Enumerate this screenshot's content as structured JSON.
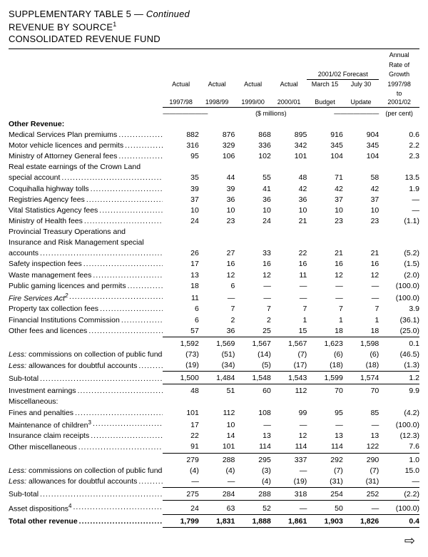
{
  "titles": {
    "t1a": "SUPPLEMENTARY TABLE 5 — ",
    "t1b": "Continued",
    "t2": "REVENUE BY SOURCE",
    "t2sup": "1",
    "t3": "CONSOLIDATED REVENUE FUND"
  },
  "colheads": {
    "c1a": "Actual",
    "c1b": "1997/98",
    "c2a": "Actual",
    "c2b": "1998/99",
    "c3a": "Actual",
    "c3b": "1999/00",
    "c4a": "Actual",
    "c4b": "2000/01",
    "forecast": "2001/02 Forecast",
    "c5a": "March 15",
    "c5b": "Budget",
    "c6a": "July 30",
    "c6b": "Update",
    "c7a": "Annual",
    "c7b": "Rate of",
    "c7c": "Growth",
    "c7d": "1997/98",
    "c7e": "to",
    "c7f": "2001/02"
  },
  "units": {
    "mid": "($ millions)",
    "last": "(per cent)"
  },
  "section": "Other Revenue:",
  "rows": [
    {
      "l": "Medical Services Plan premiums",
      "v": [
        "882",
        "876",
        "868",
        "895",
        "916",
        "904",
        "0.6"
      ]
    },
    {
      "l": "Motor vehicle licences and permits",
      "v": [
        "316",
        "329",
        "336",
        "342",
        "345",
        "345",
        "2.2"
      ]
    },
    {
      "l": "Ministry of Attorney General fees",
      "v": [
        "95",
        "106",
        "102",
        "101",
        "104",
        "104",
        "2.3"
      ]
    },
    {
      "l": "Real estate earnings of the Crown Land",
      "nolead": true,
      "v": [
        "",
        "",
        "",
        "",
        "",
        "",
        ""
      ]
    },
    {
      "l": "special account",
      "ind": 1,
      "v": [
        "35",
        "44",
        "55",
        "48",
        "71",
        "58",
        "13.5"
      ]
    },
    {
      "l": "Coquihalla highway tolls",
      "v": [
        "39",
        "39",
        "41",
        "42",
        "42",
        "42",
        "1.9"
      ]
    },
    {
      "l": "Registries Agency fees",
      "v": [
        "37",
        "36",
        "36",
        "36",
        "37",
        "37",
        "—"
      ]
    },
    {
      "l": "Vital Statistics Agency fees",
      "v": [
        "10",
        "10",
        "10",
        "10",
        "10",
        "10",
        "—"
      ]
    },
    {
      "l": "Ministry of Health fees",
      "v": [
        "24",
        "23",
        "24",
        "21",
        "23",
        "23",
        "(1.1)"
      ]
    },
    {
      "l": "Provincial Treasury Operations and",
      "nolead": true,
      "v": [
        "",
        "",
        "",
        "",
        "",
        "",
        ""
      ]
    },
    {
      "l": "Insurance and Risk Management special",
      "ind": 1,
      "nolead": true,
      "v": [
        "",
        "",
        "",
        "",
        "",
        "",
        ""
      ]
    },
    {
      "l": "accounts",
      "ind": 1,
      "v": [
        "26",
        "27",
        "33",
        "22",
        "21",
        "21",
        "(5.2)"
      ]
    },
    {
      "l": "Safety inspection fees",
      "v": [
        "17",
        "16",
        "16",
        "16",
        "16",
        "16",
        "(1.5)"
      ]
    },
    {
      "l": "Waste management fees",
      "v": [
        "13",
        "12",
        "12",
        "11",
        "12",
        "12",
        "(2.0)"
      ]
    },
    {
      "l": "Public gaming licences and permits",
      "v": [
        "18",
        "6",
        "—",
        "—",
        "—",
        "—",
        "(100.0)"
      ]
    },
    {
      "l": "Fire Services Act",
      "sup": "2",
      "italic": true,
      "v": [
        "11",
        "—",
        "—",
        "—",
        "—",
        "—",
        "(100.0)"
      ]
    },
    {
      "l": "Property tax collection fees",
      "v": [
        "6",
        "7",
        "7",
        "7",
        "7",
        "7",
        "3.9"
      ]
    },
    {
      "l": "Financial Institutions Commission",
      "v": [
        "6",
        "2",
        "2",
        "1",
        "1",
        "1",
        "(36.1)"
      ]
    },
    {
      "l": "Other fees and licences",
      "v": [
        "57",
        "36",
        "25",
        "15",
        "18",
        "18",
        "(25.0)"
      ],
      "botline": true
    }
  ],
  "sub1": {
    "l": "",
    "v": [
      "1,592",
      "1,569",
      "1,567",
      "1,567",
      "1,623",
      "1,598",
      "0.1"
    ]
  },
  "less1a": {
    "l": "Less: commissions on collection of public funds",
    "lessitalic": true,
    "v": [
      "(73)",
      "(51)",
      "(14)",
      "(7)",
      "(6)",
      "(6)",
      "(46.5)"
    ]
  },
  "less1b": {
    "l": "Less: allowances for doubtful accounts",
    "lessitalic": true,
    "v": [
      "(19)",
      "(34)",
      "(5)",
      "(17)",
      "(18)",
      "(18)",
      "(1.3)"
    ],
    "botline": true
  },
  "subtot1": {
    "l": "Sub-total",
    "ind": 1,
    "v": [
      "1,500",
      "1,484",
      "1,548",
      "1,543",
      "1,599",
      "1,574",
      "1.2"
    ],
    "botline": true
  },
  "invest": {
    "l": "Investment earnings",
    "v": [
      "48",
      "51",
      "60",
      "112",
      "70",
      "70",
      "9.9"
    ]
  },
  "misc_head": "Miscellaneous:",
  "misc_rows": [
    {
      "l": "Fines and penalties",
      "ind": 1,
      "v": [
        "101",
        "112",
        "108",
        "99",
        "95",
        "85",
        "(4.2)"
      ]
    },
    {
      "l": "Maintenance of children",
      "sup": "3",
      "ind": 1,
      "v": [
        "17",
        "10",
        "—",
        "—",
        "—",
        "—",
        "(100.0)"
      ]
    },
    {
      "l": "Insurance claim receipts",
      "ind": 1,
      "v": [
        "22",
        "14",
        "13",
        "12",
        "13",
        "13",
        "(12.3)"
      ]
    },
    {
      "l": "Other miscellaneous",
      "ind": 1,
      "v": [
        "91",
        "101",
        "114",
        "114",
        "114",
        "122",
        "7.6"
      ],
      "botline": true
    }
  ],
  "sub2": {
    "l": "",
    "v": [
      "279",
      "288",
      "295",
      "337",
      "292",
      "290",
      "1.0"
    ]
  },
  "less2a": {
    "l": "Less: commissions on collection of public funds",
    "lessitalic": true,
    "v": [
      "(4)",
      "(4)",
      "(3)",
      "—",
      "(7)",
      "(7)",
      "15.0"
    ]
  },
  "less2b": {
    "l": "Less: allowances for doubtful accounts",
    "lessitalic": true,
    "v": [
      "—",
      "—",
      "(4)",
      "(19)",
      "(31)",
      "(31)",
      "—"
    ],
    "botline": true
  },
  "subtot2": {
    "l": "Sub-total",
    "ind": 1,
    "v": [
      "275",
      "284",
      "288",
      "318",
      "254",
      "252",
      "(2.2)"
    ],
    "botline": true
  },
  "asset": {
    "l": "Asset dispositions",
    "sup": "4",
    "v": [
      "24",
      "63",
      "52",
      "—",
      "50",
      "—",
      "(100.0)"
    ],
    "botline": true
  },
  "total": {
    "l": "Total other revenue",
    "ind": 1,
    "v": [
      "1,799",
      "1,831",
      "1,888",
      "1,861",
      "1,903",
      "1,826",
      "0.4"
    ]
  }
}
